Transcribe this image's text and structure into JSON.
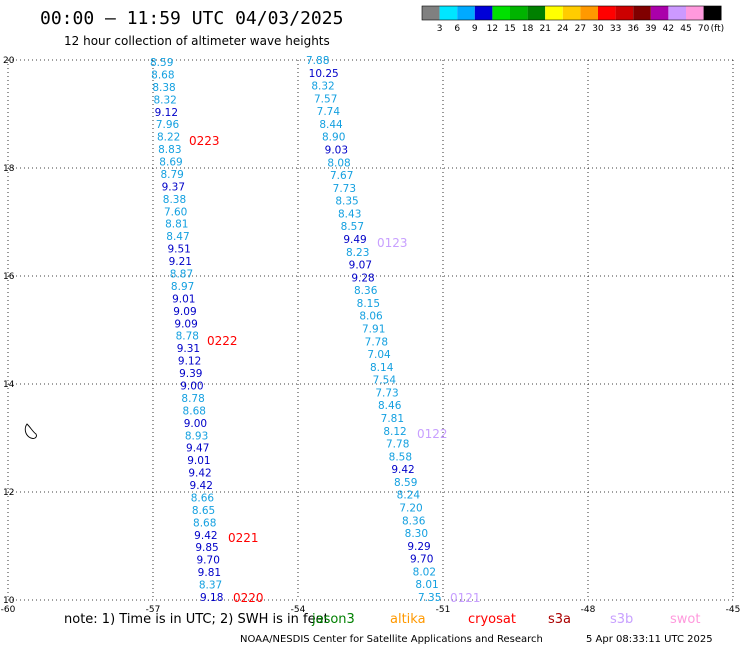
{
  "header": {
    "title": "00:00 – 11:59 UTC 04/03/2025",
    "subtitle": "12 hour collection of altimeter wave heights"
  },
  "colorbar": {
    "labels": [
      "3",
      "6",
      "9",
      "12",
      "15",
      "18",
      "21",
      "24",
      "27",
      "30",
      "33",
      "36",
      "39",
      "42",
      "45",
      "70"
    ],
    "unit": "(ft)",
    "colors": [
      "#808080",
      "#00e6ff",
      "#00aaff",
      "#0000d8",
      "#00e000",
      "#00b400",
      "#008000",
      "#ffff00",
      "#ffcc00",
      "#ff9900",
      "#ff0000",
      "#cc0000",
      "#800000",
      "#aa00aa",
      "#cc99ff",
      "#ff99dd",
      "#000000"
    ]
  },
  "axes": {
    "x_ticks": [
      "-60",
      "-57",
      "-54",
      "-51",
      "-48",
      "-45"
    ],
    "y_ticks": [
      "20",
      "18",
      "16",
      "14",
      "12",
      "10"
    ]
  },
  "tracks": [
    {
      "values": [
        "8.59",
        "8.68",
        "8.38",
        "8.32",
        "9.12",
        "7.96",
        "8.22",
        "8.83",
        "8.69",
        "8.79",
        "9.37",
        "8.38",
        "7.60",
        "8.81",
        "8.47",
        "9.51",
        "9.21",
        "8.87",
        "8.97",
        "9.01",
        "9.09",
        "9.09",
        "8.78",
        "9.31",
        "9.12",
        "9.39",
        "9.00",
        "8.78",
        "8.68",
        "9.00",
        "8.93",
        "9.47",
        "9.01",
        "9.42",
        "9.42",
        "8.66",
        "8.65",
        "8.68",
        "9.42",
        "9.85",
        "9.70",
        "9.81",
        "8.37",
        "9.18"
      ],
      "track_labels": [
        "0223",
        "0222",
        "0221",
        "0220"
      ],
      "label_color": "#ff0000"
    },
    {
      "values": [
        "7.88",
        "10.25",
        "8.32",
        "7.57",
        "7.74",
        "8.44",
        "8.90",
        "9.03",
        "8.08",
        "7.67",
        "7.73",
        "8.35",
        "8.43",
        "8.57",
        "9.49",
        "8.23",
        "9.07",
        "9.28",
        "8.36",
        "8.15",
        "8.06",
        "7.91",
        "7.78",
        "7.04",
        "8.14",
        "7.54",
        "7.73",
        "8.46",
        "7.81",
        "8.12",
        "7.78",
        "8.58",
        "9.42",
        "8.59",
        "8.24",
        "7.20",
        "8.36",
        "8.30",
        "9.29",
        "9.70",
        "8.02",
        "8.01",
        "7.35"
      ],
      "track_labels": [
        "0123",
        "0122",
        "0121"
      ],
      "label_color": "#c8a0ff"
    }
  ],
  "note": {
    "prefix": "note:  1) Time is in UTC; 2) SWH is in feet",
    "satellites": [
      {
        "name": "jason3",
        "color": "#008000"
      },
      {
        "name": "altika",
        "color": "#ff9900"
      },
      {
        "name": "cryosat",
        "color": "#ff0000"
      },
      {
        "name": "s3a",
        "color": "#aa0000"
      },
      {
        "name": "s3b",
        "color": "#c8a0ff"
      },
      {
        "name": "swot",
        "color": "#ff99dd"
      }
    ]
  },
  "footer": {
    "credit": "NOAA/NESDIS Center for Satellite Applications and Research",
    "timestamp": "5 Apr 08:33:11 UTC 2025"
  }
}
